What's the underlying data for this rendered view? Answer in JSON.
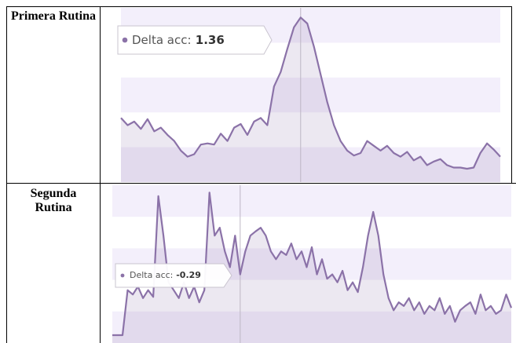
{
  "table": {
    "rows": [
      {
        "label": "Primera Rutina"
      },
      {
        "label": "Segunda Rutina"
      }
    ]
  },
  "chart_data": [
    {
      "type": "area",
      "ylim": [
        0,
        1.44
      ],
      "series": [
        {
          "name": "Delta acc:",
          "color": "#8b72a8",
          "values": [
            0.53,
            0.47,
            0.5,
            0.44,
            0.52,
            0.42,
            0.45,
            0.39,
            0.34,
            0.26,
            0.21,
            0.23,
            0.31,
            0.32,
            0.31,
            0.4,
            0.34,
            0.45,
            0.48,
            0.39,
            0.5,
            0.53,
            0.47,
            0.79,
            0.91,
            1.1,
            1.28,
            1.36,
            1.31,
            1.12,
            0.89,
            0.66,
            0.47,
            0.34,
            0.26,
            0.22,
            0.24,
            0.34,
            0.3,
            0.26,
            0.3,
            0.24,
            0.21,
            0.25,
            0.18,
            0.21,
            0.14,
            0.17,
            0.19,
            0.14,
            0.12,
            0.12,
            0.11,
            0.12,
            0.24,
            0.32,
            0.27,
            0.21
          ]
        }
      ]
    },
    {
      "type": "area",
      "ylim": [
        -1.42,
        1.18
      ],
      "series": [
        {
          "name": "Delta acc:",
          "color": "#8b72a8",
          "values": [
            -1.29,
            -1.29,
            -1.29,
            -0.55,
            -0.62,
            -0.49,
            -0.68,
            -0.55,
            -0.66,
            1.0,
            0.35,
            -0.42,
            -0.55,
            -0.68,
            -0.42,
            -0.68,
            -0.49,
            -0.75,
            -0.55,
            1.06,
            0.35,
            0.48,
            0.09,
            -0.17,
            0.35,
            -0.29,
            0.09,
            0.35,
            0.42,
            0.48,
            0.35,
            0.09,
            -0.04,
            0.09,
            0.03,
            0.22,
            -0.04,
            0.09,
            -0.17,
            0.16,
            -0.29,
            -0.04,
            -0.36,
            -0.29,
            -0.42,
            -0.23,
            -0.55,
            -0.42,
            -0.58,
            -0.17,
            0.35,
            0.74,
            0.35,
            -0.29,
            -0.68,
            -0.88,
            -0.75,
            -0.81,
            -0.68,
            -0.88,
            -0.75,
            -0.94,
            -0.81,
            -0.88,
            -0.68,
            -0.94,
            -0.81,
            -1.07,
            -0.88,
            -0.81,
            -0.75,
            -0.94,
            -0.62,
            -0.88,
            -0.81,
            -0.94,
            -0.88,
            -0.62,
            -0.84
          ]
        }
      ]
    }
  ]
}
